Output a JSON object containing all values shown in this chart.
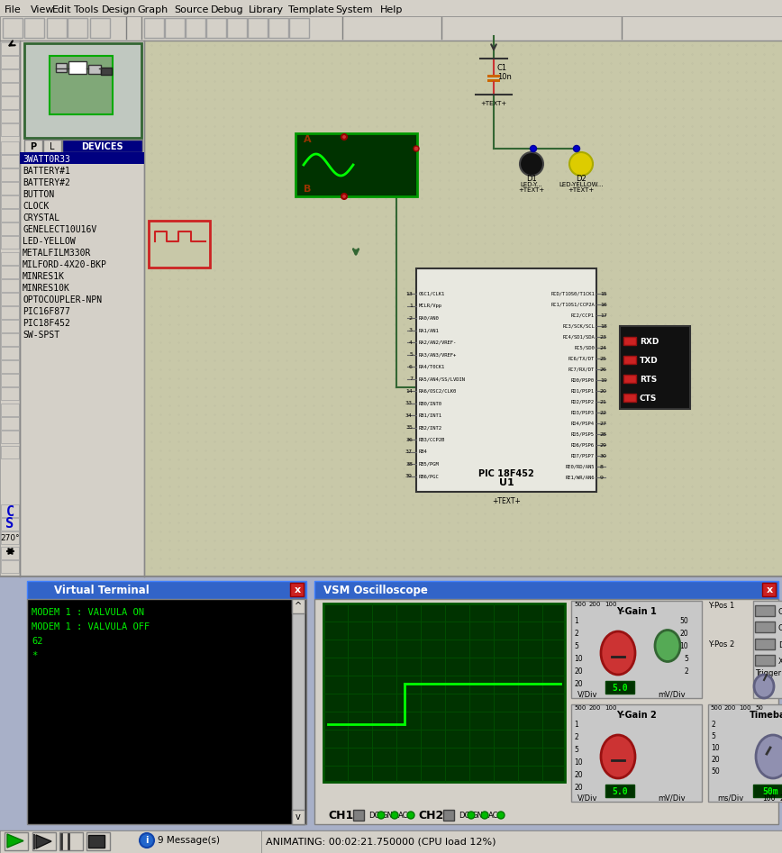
{
  "bg_color": "#d4d0c8",
  "menu_items": [
    "File",
    "View",
    "Edit",
    "Tools",
    "Design",
    "Graph",
    "Source",
    "Debug",
    "Library",
    "Template",
    "System",
    "Help"
  ],
  "menu_x": [
    5,
    34,
    58,
    82,
    113,
    152,
    193,
    234,
    276,
    320,
    372,
    422
  ],
  "devices_list": [
    "3WATT0R33",
    "BATTERY#1",
    "BATTERY#2",
    "BUTTON",
    "CLOCK",
    "CRYSTAL",
    "GENELECT10U16V",
    "LED-YELLOW",
    "METALFILM330R",
    "MILFORD-4X20-BKP",
    "MINRES1K",
    "MINRES10K",
    "OPTOCOUPLER-NPN",
    "PIC16F877",
    "PIC18F452",
    "SW-SPST"
  ],
  "virtual_terminal_text": [
    "MODEM 1 : VALVULA ON",
    "MODEM 1 : VALVULA OFF",
    "62",
    "*"
  ],
  "status_text": "ANIMATING: 00:02:21.750000 (CPU load 12%)",
  "messages": "9 Message(s)",
  "canvas_bg": "#c8c8a8",
  "osc_bg": "#003300",
  "grid_color": "#004d00",
  "left_panel_bg": "#d4d0c8",
  "window_title_bg": "#3264c8",
  "window_body_bg": "#d4d0c8"
}
